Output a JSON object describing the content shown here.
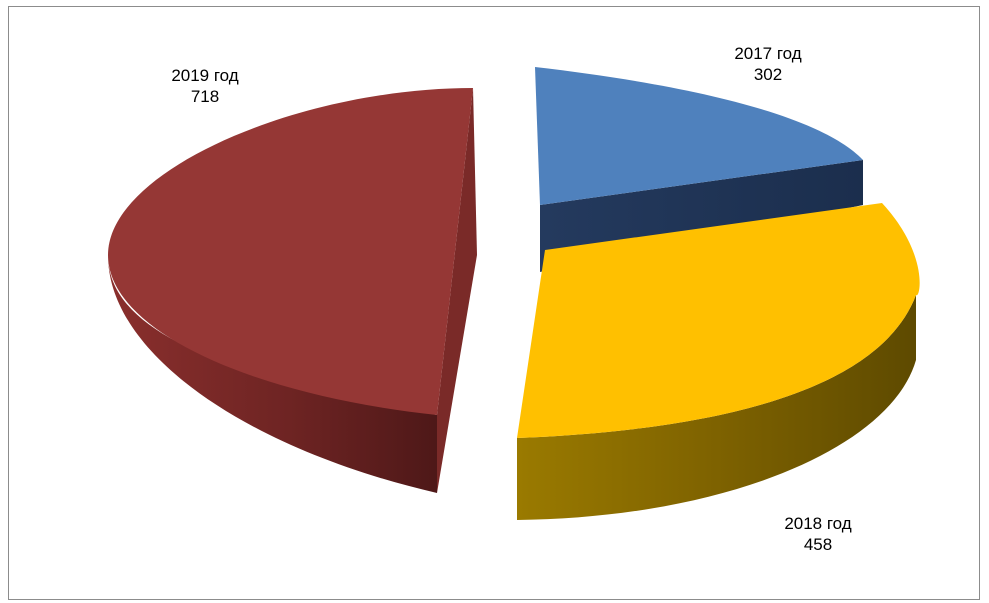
{
  "chart_data": {
    "type": "pie",
    "style": "3d-exploded",
    "legend": "none",
    "data_labels": "category-and-value",
    "categories": [
      "2017 год",
      "2018 год",
      "2019 год"
    ],
    "values": [
      302,
      458,
      718
    ],
    "colors": [
      "#4f81bd",
      "#ffc000",
      "#953735"
    ],
    "labels": [
      {
        "category": "2017 год",
        "value": "302"
      },
      {
        "category": "2018 год",
        "value": "458"
      },
      {
        "category": "2019 год",
        "value": "718"
      }
    ]
  }
}
